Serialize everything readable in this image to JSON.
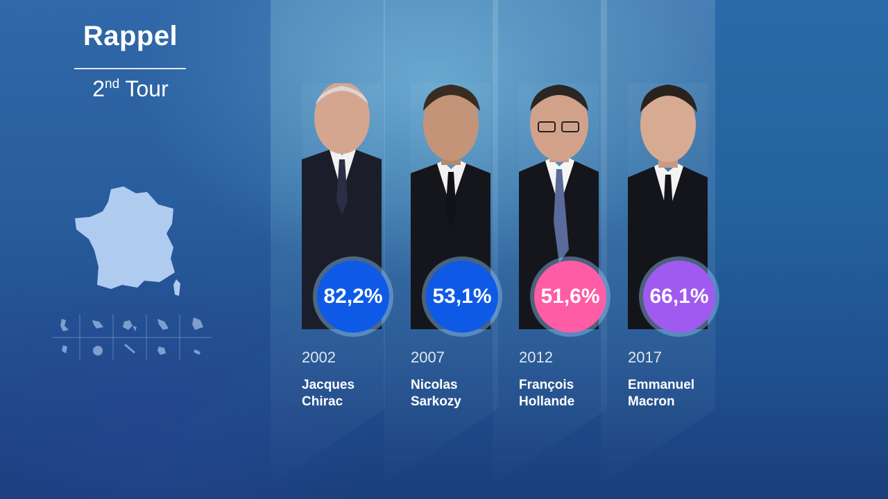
{
  "header": {
    "title": "Rappel",
    "subtitle_round": "2",
    "subtitle_sup": "nd",
    "subtitle_rest": " Tour"
  },
  "colors": {
    "blue": "#0e5ae6",
    "pink": "#ff5ca6",
    "purple": "#a05af0"
  },
  "candidates": [
    {
      "year": "2002",
      "first": "Jacques",
      "last": "Chirac",
      "percent": "82,2%",
      "badge_color": "#0e5ae6"
    },
    {
      "year": "2007",
      "first": "Nicolas",
      "last": "Sarkozy",
      "percent": "53,1%",
      "badge_color": "#0e5ae6"
    },
    {
      "year": "2012",
      "first": "François",
      "last": "Hollande",
      "percent": "51,6%",
      "badge_color": "#ff5ca6"
    },
    {
      "year": "2017",
      "first": "Emmanuel",
      "last": "Macron",
      "percent": "66,1%",
      "badge_color": "#a05af0"
    }
  ]
}
